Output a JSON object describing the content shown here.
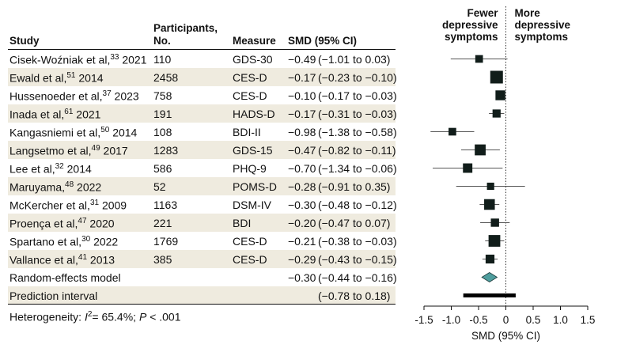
{
  "headers": {
    "study": "Study",
    "participants_line1": "Participants,",
    "participants_line2": "No.",
    "measure": "Measure",
    "smd": "SMD (95% CI)"
  },
  "rows": [
    {
      "study": "Cisek-Woźniak et al,",
      "ref": "33",
      "year": "2021",
      "n": "110",
      "measure": "GDS-30",
      "smd": "−0.49",
      "ci": "(−1.01 to 0.03)",
      "shaded": false
    },
    {
      "study": "Ewald et al,",
      "ref": "51",
      "year": "2014",
      "n": "2458",
      "measure": "CES-D",
      "smd": "−0.17",
      "ci": "(−0.23 to −0.10)",
      "shaded": true
    },
    {
      "study": "Hussenoeder et al,",
      "ref": "37",
      "year": "2023",
      "n": "758",
      "measure": "CES-D",
      "smd": "−0.10",
      "ci": "(−0.17 to −0.03)",
      "shaded": false
    },
    {
      "study": "Inada et al,",
      "ref": "61",
      "year": "2021",
      "n": "191",
      "measure": "HADS-D",
      "smd": "−0.17",
      "ci": "(−0.31 to −0.03)",
      "shaded": true
    },
    {
      "study": "Kangasniemi et al,",
      "ref": "50",
      "year": "2014",
      "n": "108",
      "measure": "BDI-II",
      "smd": "−0.98",
      "ci": "(−1.38 to −0.58)",
      "shaded": false
    },
    {
      "study": "Langsetmo et al,",
      "ref": "49",
      "year": "2017",
      "n": "1283",
      "measure": "GDS-15",
      "smd": "−0.47",
      "ci": "(−0.82 to −0.11)",
      "shaded": true
    },
    {
      "study": "Lee et al,",
      "ref": "32",
      "year": "2014",
      "n": "586",
      "measure": "PHQ-9",
      "smd": "−0.70",
      "ci": "(−1.34 to −0.06)",
      "shaded": false
    },
    {
      "study": "Maruyama,",
      "ref": "48",
      "year": "2022",
      "n": "52",
      "measure": "POMS-D",
      "smd": "−0.28",
      "ci": "(−0.91 to 0.35)",
      "shaded": true
    },
    {
      "study": "McKercher et al,",
      "ref": "31",
      "year": "2009",
      "n": "1163",
      "measure": "DSM-IV",
      "smd": "−0.30",
      "ci": "(−0.48 to −0.12)",
      "shaded": false
    },
    {
      "study": "Proença et al,",
      "ref": "47",
      "year": "2020",
      "n": "221",
      "measure": "BDI",
      "smd": "−0.20",
      "ci": "(−0.47 to 0.07)",
      "shaded": true
    },
    {
      "study": "Spartano et al,",
      "ref": "30",
      "year": "2022",
      "n": "1769",
      "measure": "CES-D",
      "smd": "−0.21",
      "ci": "(−0.38 to −0.03)",
      "shaded": false
    },
    {
      "study": "Vallance et al,",
      "ref": "41",
      "year": "2013",
      "n": "385",
      "measure": "CES-D",
      "smd": "−0.29",
      "ci": "(−0.43 to −0.15)",
      "shaded": true
    },
    {
      "study": "Random-effects model",
      "ref": "",
      "year": "",
      "n": "",
      "measure": "",
      "smd": "−0.30",
      "ci": "(−0.44 to −0.16)",
      "shaded": false
    },
    {
      "study": "Prediction interval",
      "ref": "",
      "year": "",
      "n": "",
      "measure": "",
      "smd": "",
      "ci": "(−0.78 to 0.18)",
      "shaded": true
    }
  ],
  "footnote": {
    "label": "Heterogeneity:",
    "i2_symbol": "I",
    "i2_sup": "2",
    "i2_value": "= 65.4%;",
    "p_symbol": "P",
    "p_value": "< .001"
  },
  "chart_data": {
    "type": "forest",
    "xlabel": "SMD (95% CI)",
    "xlim": [
      -1.5,
      1.5
    ],
    "ticks": [
      -1.5,
      -1.0,
      -0.5,
      0,
      0.5,
      1.0,
      1.5
    ],
    "tick_labels": [
      "-1.5",
      "-1.0",
      "-0.5",
      "0",
      "0.5",
      "1.0",
      "1.5"
    ],
    "reference_line": 0,
    "direction_left": [
      "Fewer",
      "depressive",
      "symptoms"
    ],
    "direction_right": [
      "More",
      "depressive",
      "symptoms"
    ],
    "studies": [
      {
        "label": "Cisek-Woźniak et al 2021",
        "est": -0.49,
        "lo": -1.01,
        "hi": 0.03,
        "weight": 110
      },
      {
        "label": "Ewald et al 2014",
        "est": -0.17,
        "lo": -0.23,
        "hi": -0.1,
        "weight": 2458
      },
      {
        "label": "Hussenoeder et al 2023",
        "est": -0.1,
        "lo": -0.17,
        "hi": -0.03,
        "weight": 758
      },
      {
        "label": "Inada et al 2021",
        "est": -0.17,
        "lo": -0.31,
        "hi": -0.03,
        "weight": 191
      },
      {
        "label": "Kangasniemi et al 2014",
        "est": -0.98,
        "lo": -1.38,
        "hi": -0.58,
        "weight": 108
      },
      {
        "label": "Langsetmo et al 2017",
        "est": -0.47,
        "lo": -0.82,
        "hi": -0.11,
        "weight": 1283
      },
      {
        "label": "Lee et al 2014",
        "est": -0.7,
        "lo": -1.34,
        "hi": -0.06,
        "weight": 586
      },
      {
        "label": "Maruyama 2022",
        "est": -0.28,
        "lo": -0.91,
        "hi": 0.35,
        "weight": 52
      },
      {
        "label": "McKercher et al 2009",
        "est": -0.3,
        "lo": -0.48,
        "hi": -0.12,
        "weight": 1163
      },
      {
        "label": "Proença et al 2020",
        "est": -0.2,
        "lo": -0.47,
        "hi": 0.07,
        "weight": 221
      },
      {
        "label": "Spartano et al 2022",
        "est": -0.21,
        "lo": -0.38,
        "hi": -0.03,
        "weight": 1769
      },
      {
        "label": "Vallance et al 2013",
        "est": -0.29,
        "lo": -0.43,
        "hi": -0.15,
        "weight": 385
      }
    ],
    "pooled": {
      "label": "Random-effects model",
      "est": -0.3,
      "lo": -0.44,
      "hi": -0.16
    },
    "prediction_interval": {
      "lo": -0.78,
      "hi": 0.18
    },
    "colors": {
      "marker": "#111d1a",
      "diamond": "#4f9e9e",
      "shade": "#efebdf",
      "text": "#111111"
    }
  }
}
